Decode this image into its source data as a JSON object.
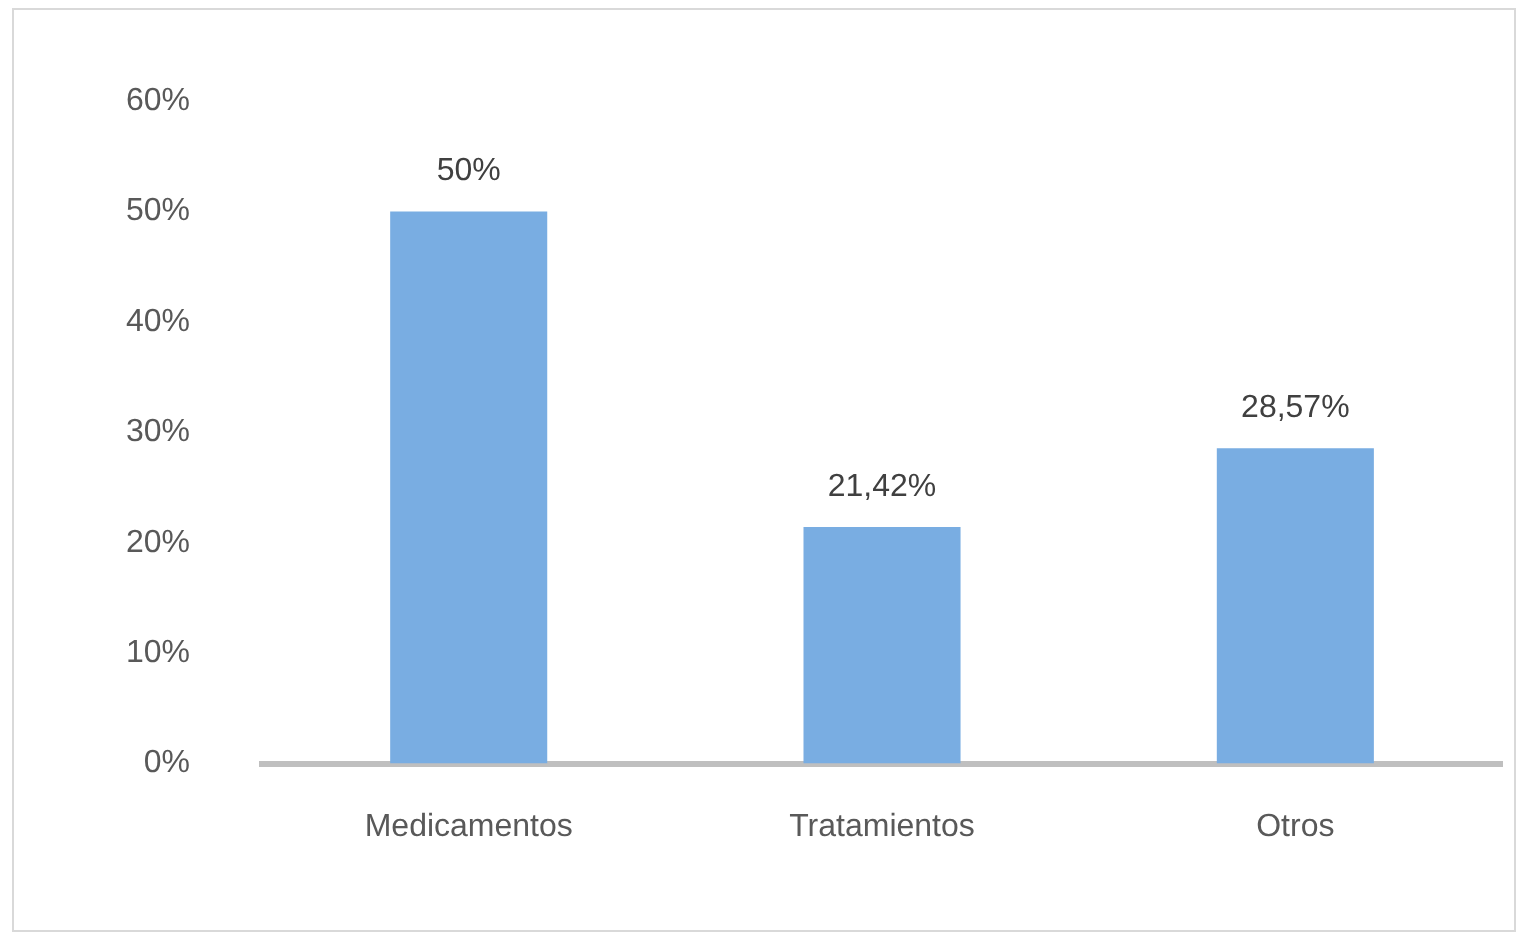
{
  "chart_data": {
    "type": "bar",
    "categories": [
      "Medicamentos",
      "Tratamientos",
      "Otros"
    ],
    "values": [
      50,
      21.42,
      28.57
    ],
    "value_labels": [
      "50%",
      "21,42%",
      "28,57%"
    ],
    "color": "#79ade2",
    "ylim": [
      0,
      60
    ],
    "yticks": [
      {
        "value": 0,
        "label": "0%"
      },
      {
        "value": 10,
        "label": "10%"
      },
      {
        "value": 20,
        "label": "20%"
      },
      {
        "value": 30,
        "label": "30%"
      },
      {
        "value": 40,
        "label": "40%"
      },
      {
        "value": 50,
        "label": "50%"
      },
      {
        "value": 60,
        "label": "60%"
      }
    ],
    "grid": false,
    "legend": false
  }
}
